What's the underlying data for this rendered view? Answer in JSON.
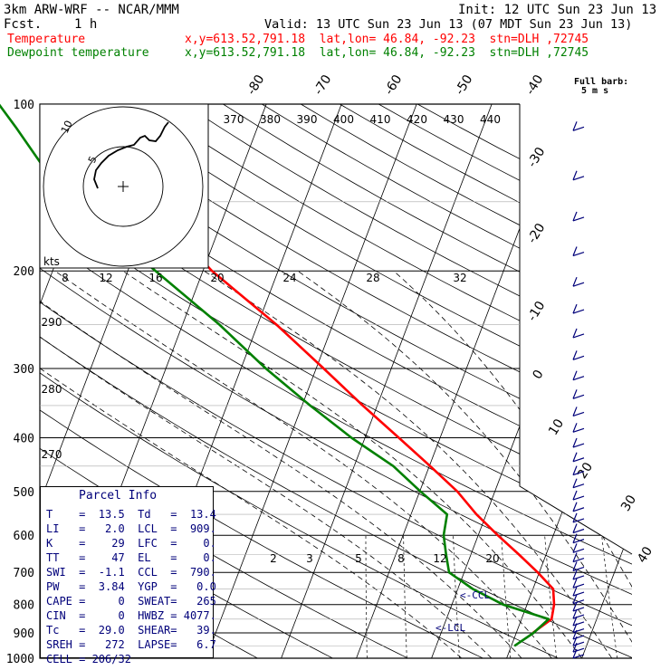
{
  "header": {
    "model": "3km ARW-WRF -- NCAR/MMM",
    "fcst_label": "Fcst.",
    "fcst_value": "1 h",
    "init": "Init: 12 UTC Sun 23 Jun 13",
    "valid": "Valid: 13 UTC Sun 23 Jun 13 (07 MDT Sun 23 Jun 13)",
    "temp_label": "Temperature",
    "dew_label": "Dewpoint temperature",
    "temp_loc": "x,y=613.52,791.18  lat,lon= 46.84, -92.23  stn=DLH ,72745",
    "dew_loc": "x,y=613.52,791.18  lat,lon= 46.84, -92.23  stn=DLH ,72745"
  },
  "barb_legend": {
    "line1": "Full barb:",
    "line2": "5 m s"
  },
  "hodograph": {
    "units": "kts",
    "ring_labels": [
      "5",
      "10"
    ]
  },
  "parcel_info": {
    "title": "Parcel Info",
    "rows": [
      [
        "T",
        "13.5",
        "Td",
        "13.4"
      ],
      [
        "LI",
        "2.0",
        "LCL",
        "909."
      ],
      [
        "K",
        "29",
        "LFC",
        "0."
      ],
      [
        "TT",
        "47",
        "EL",
        "0."
      ],
      [
        "SWI",
        "-1.1",
        "CCL",
        "790."
      ],
      [
        "PW",
        "3.84",
        "YGP",
        "0.0"
      ],
      [
        "CAPE",
        "0",
        "SWEAT",
        "265"
      ],
      [
        "CIN",
        "0",
        "HWBZ",
        "4077."
      ],
      [
        "Tc",
        "29.0",
        "SHEAR",
        "39."
      ],
      [
        "SREH",
        "272",
        "LAPSE",
        "6.7"
      ]
    ],
    "cell": "CELL = 206/32"
  },
  "colors": {
    "temperature": "#ff0000",
    "dewpoint": "#008000",
    "text": "#00007a",
    "grid": "#000000"
  },
  "chart_data": {
    "type": "line",
    "y_scale": "log pressure",
    "ylim": [
      1000,
      100
    ],
    "xlim": [
      -40,
      40
    ],
    "pressure_ticks": [
      "100",
      "200",
      "300",
      "400",
      "500",
      "600",
      "700",
      "800",
      "900",
      "1000"
    ],
    "isotherm_labels": [
      "-80",
      "-70",
      "-60",
      "-50",
      "-40",
      "-30",
      "-20",
      "-10",
      "0",
      "10",
      "20",
      "30",
      "40"
    ],
    "theta_top_labels": [
      "370",
      "380",
      "390",
      "400",
      "410",
      "420",
      "430",
      "440"
    ],
    "theta_left_labels": [
      "290",
      "280",
      "270"
    ],
    "mixing_ratio_top": [
      "8",
      "12",
      "16",
      "20",
      "24",
      "28",
      "32"
    ],
    "mixing_ratio_low": [
      "2",
      "3",
      "5",
      "8",
      "12",
      "20"
    ],
    "lcl_label": "<-LCL",
    "ccl_label": "<-CCL",
    "series": [
      {
        "name": "Temperature",
        "points": [
          [
            1000,
            -99
          ],
          [
            900,
            12.2
          ],
          [
            850,
            14
          ],
          [
            800,
            13.6
          ],
          [
            750,
            12.7
          ],
          [
            700,
            9.8
          ],
          [
            650,
            6.4
          ],
          [
            600,
            2.6
          ],
          [
            550,
            -1.3
          ],
          [
            500,
            -5
          ],
          [
            450,
            -9.9
          ],
          [
            400,
            -15.5
          ],
          [
            350,
            -21.9
          ],
          [
            300,
            -29
          ],
          [
            250,
            -37.5
          ],
          [
            200,
            -48.8
          ],
          [
            175,
            -54.4
          ],
          [
            150,
            -59.7
          ],
          [
            125,
            -63.7
          ],
          [
            110,
            -66.2
          ],
          [
            100,
            -67.7
          ]
        ]
      },
      {
        "name": "Dewpoint temperature",
        "points": [
          [
            1000,
            -99
          ],
          [
            950,
            10.4
          ],
          [
            900,
            12.3
          ],
          [
            850,
            13.6
          ],
          [
            800,
            6.8
          ],
          [
            750,
            2
          ],
          [
            700,
            -2
          ],
          [
            650,
            -3.3
          ],
          [
            600,
            -4.6
          ],
          [
            550,
            -5.2
          ],
          [
            500,
            -9.9
          ],
          [
            450,
            -14.8
          ],
          [
            400,
            -21.8
          ],
          [
            350,
            -28.9
          ],
          [
            300,
            -36.7
          ],
          [
            250,
            -45.1
          ],
          [
            200,
            -56.3
          ],
          [
            175,
            -63.1
          ],
          [
            150,
            -71.5
          ],
          [
            125,
            -77.8
          ],
          [
            110,
            -82.2
          ],
          [
            100,
            -85.6
          ]
        ]
      }
    ]
  }
}
